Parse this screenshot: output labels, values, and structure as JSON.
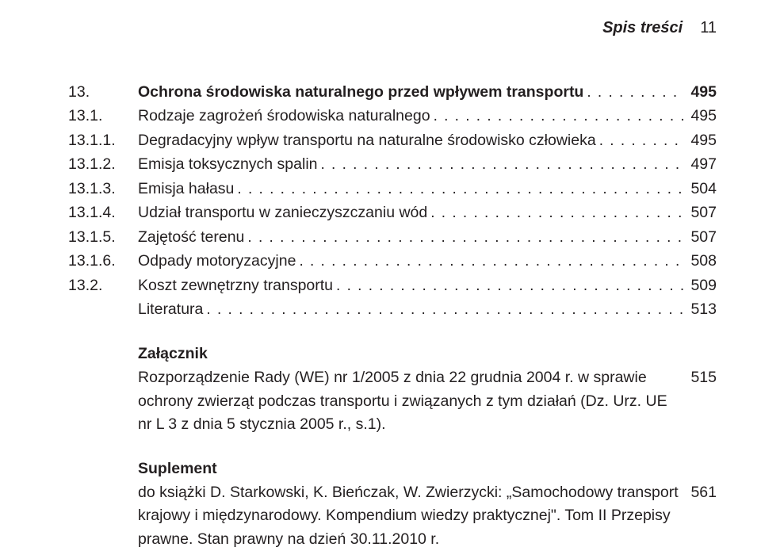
{
  "header": {
    "title": "Spis treści",
    "page": "11"
  },
  "toc": [
    {
      "num": "13.",
      "label": "Ochrona środowiska naturalnego przed wpływem transportu",
      "page": "495",
      "bold": true
    },
    {
      "num": "13.1.",
      "label": "Rodzaje zagrożeń środowiska naturalnego",
      "page": "495"
    },
    {
      "num": "13.1.1.",
      "label": "Degradacyjny wpływ transportu na naturalne środowisko człowieka",
      "page": "495"
    },
    {
      "num": "13.1.2.",
      "label": "Emisja toksycznych spalin",
      "page": "497"
    },
    {
      "num": "13.1.3.",
      "label": "Emisja hałasu",
      "page": "504"
    },
    {
      "num": "13.1.4.",
      "label": "Udział transportu w zanieczyszczaniu wód",
      "page": "507"
    },
    {
      "num": "13.1.5.",
      "label": "Zajętość terenu",
      "page": "507"
    },
    {
      "num": "13.1.6.",
      "label": "Odpady motoryzacyjne",
      "page": "508"
    },
    {
      "num": "13.2.",
      "label": "Koszt zewnętrzny transportu",
      "page": "509"
    },
    {
      "num": "",
      "label": "Literatura",
      "page": "513"
    }
  ],
  "appendix": {
    "heading": "Załącznik",
    "text": "Rozporządzenie Rady (WE) nr 1/2005 z dnia 22 grudnia 2004 r. w sprawie ochrony zwierząt podczas transportu i związanych z tym działań (Dz. Urz. UE nr L 3 z dnia 5 stycznia 2005 r., s.1).",
    "page": "515"
  },
  "supplement": {
    "heading": "Suplement",
    "text": "do książki D. Starkowski, K. Bieńczak, W. Zwierzycki: „Samochodowy transport krajowy i międzynarodowy. Kompendium wiedzy praktycznej\".  Tom II  Przepisy prawne.  Stan prawny na dzień 30.11.2010 r.",
    "page": "561"
  }
}
